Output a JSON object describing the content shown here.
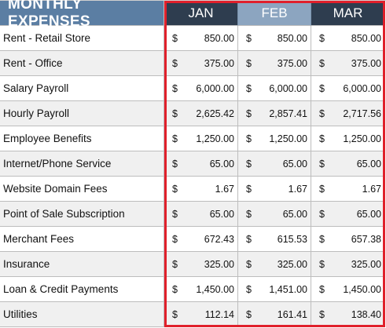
{
  "header": {
    "title": "MONTHLY EXPENSES",
    "months": [
      "JAN",
      "FEB",
      "MAR"
    ]
  },
  "currency_symbol": "$",
  "rows": [
    {
      "label": "Rent - Retail Store",
      "values": [
        "850.00",
        "850.00",
        "850.00"
      ]
    },
    {
      "label": "Rent - Office",
      "values": [
        "375.00",
        "375.00",
        "375.00"
      ]
    },
    {
      "label": "Salary Payroll",
      "values": [
        "6,000.00",
        "6,000.00",
        "6,000.00"
      ]
    },
    {
      "label": "Hourly Payroll",
      "values": [
        "2,625.42",
        "2,857.41",
        "2,717.56"
      ]
    },
    {
      "label": "Employee Benefits",
      "values": [
        "1,250.00",
        "1,250.00",
        "1,250.00"
      ]
    },
    {
      "label": "Internet/Phone Service",
      "values": [
        "65.00",
        "65.00",
        "65.00"
      ]
    },
    {
      "label": "Website Domain Fees",
      "values": [
        "1.67",
        "1.67",
        "1.67"
      ]
    },
    {
      "label": "Point of Sale Subscription",
      "values": [
        "65.00",
        "65.00",
        "65.00"
      ]
    },
    {
      "label": "Merchant Fees",
      "values": [
        "672.43",
        "615.53",
        "657.38"
      ]
    },
    {
      "label": "Insurance",
      "values": [
        "325.00",
        "325.00",
        "325.00"
      ]
    },
    {
      "label": "Loan & Credit Payments",
      "values": [
        "1,450.00",
        "1,451.00",
        "1,450.00"
      ]
    },
    {
      "label": "Utilities",
      "values": [
        "112.14",
        "161.41",
        "138.40"
      ]
    }
  ],
  "colors": {
    "title_bg": "#5b7ea3",
    "month_dark": "#2e3d4f",
    "month_light": "#8ca5c0",
    "highlight_border": "#e0202b"
  }
}
